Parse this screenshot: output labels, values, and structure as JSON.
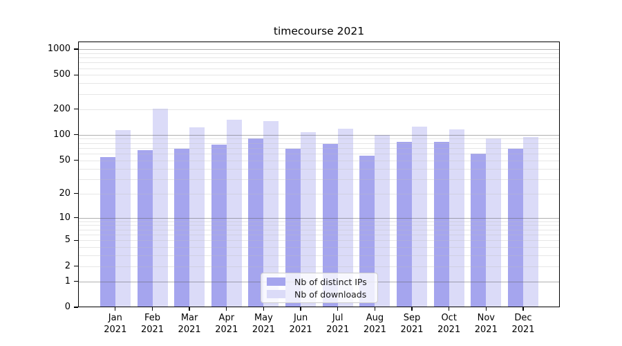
{
  "chart_data": {
    "type": "bar",
    "title": "timecourse 2021",
    "categories": [
      "Jan",
      "Feb",
      "Mar",
      "Apr",
      "May",
      "Jun",
      "Jul",
      "Aug",
      "Sep",
      "Oct",
      "Nov",
      "Dec"
    ],
    "category_year": "2021",
    "series": [
      {
        "name": "Nb of distinct IPs",
        "color": "#a5a5ee",
        "values": [
          55,
          66,
          69,
          76,
          90,
          69,
          78,
          57,
          83,
          83,
          60,
          68
        ]
      },
      {
        "name": "Nb of downloads",
        "color": "#dbdbf8",
        "values": [
          113,
          202,
          123,
          150,
          145,
          108,
          117,
          99,
          124,
          116,
          90,
          94
        ]
      }
    ],
    "yscale": "symlog",
    "y_ticks": [
      0,
      1,
      2,
      5,
      10,
      20,
      50,
      100,
      200,
      500,
      1000
    ],
    "ylim": [
      0,
      1180
    ],
    "grid": true,
    "legend_position": "lower-center-inside",
    "colors": {
      "major_grid": "#b0b0b0",
      "minor_grid": "#e8e8e8",
      "axis": "#000000",
      "background": "#ffffff"
    }
  }
}
